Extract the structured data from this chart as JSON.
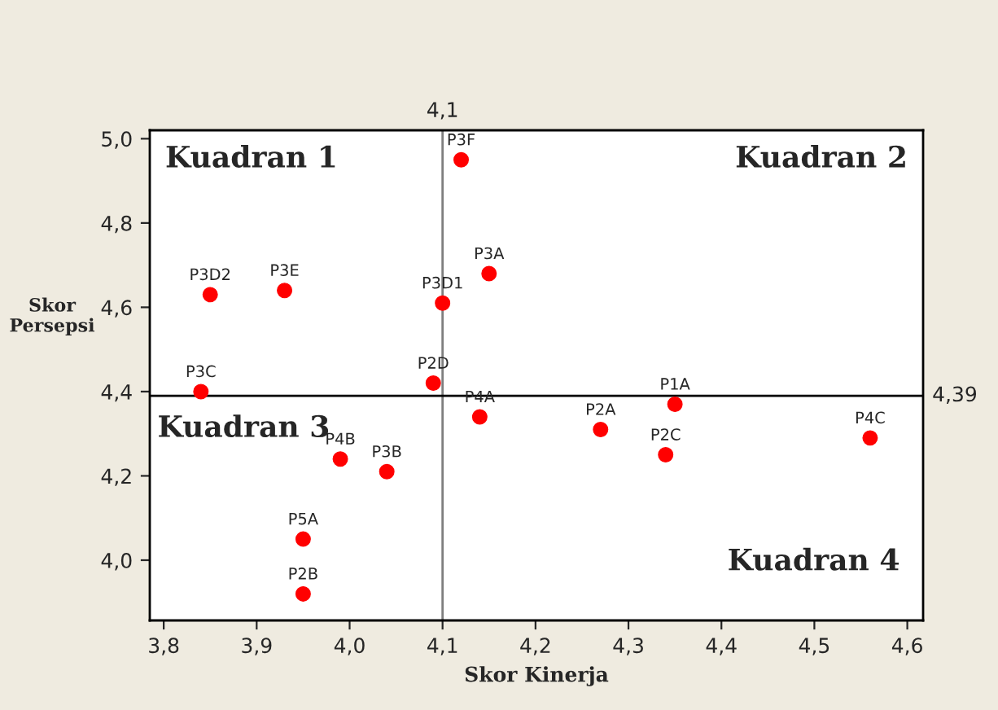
{
  "chart_data": {
    "type": "scatter",
    "xlabel": "Skor Kinerja",
    "ylabel": "Skor Persepsi",
    "x": [
      4.12,
      4.15,
      4.1,
      4.09,
      3.85,
      3.93,
      3.84,
      4.14,
      3.99,
      4.04,
      3.95,
      3.95,
      4.27,
      4.35,
      4.34,
      4.56
    ],
    "series": [
      {
        "color": "#ff0000",
        "values": [
          4.95,
          4.68,
          4.61,
          4.42,
          4.63,
          4.64,
          4.4,
          4.34,
          4.24,
          4.21,
          4.05,
          3.92,
          4.31,
          4.37,
          4.25,
          4.29
        ]
      }
    ],
    "marker": "circle",
    "grid": false,
    "legend": false,
    "xlim": [
      3.785,
      4.617
    ],
    "ylim": [
      3.857,
      5.02
    ],
    "xticks": [
      {
        "value": 3.8,
        "label": "3,8"
      },
      {
        "value": 3.9,
        "label": "3,9"
      },
      {
        "value": 4.0,
        "label": "4,0"
      },
      {
        "value": 4.1,
        "label": "4,1"
      },
      {
        "value": 4.2,
        "label": "4,2"
      },
      {
        "value": 4.3,
        "label": "4,3"
      },
      {
        "value": 4.4,
        "label": "4,4"
      },
      {
        "value": 4.5,
        "label": "4,5"
      },
      {
        "value": 4.6,
        "label": "4,6"
      }
    ],
    "yticks": [
      {
        "value": 4.0,
        "label": "4,0"
      },
      {
        "value": 4.2,
        "label": "4,2"
      },
      {
        "value": 4.4,
        "label": "4,4"
      },
      {
        "value": 4.6,
        "label": "4,6"
      },
      {
        "value": 4.8,
        "label": "4,8"
      },
      {
        "value": 5.0,
        "label": "5,0"
      }
    ],
    "ref_lines": [
      {
        "axis": "x",
        "value": 4.1,
        "label": "4,1",
        "color": "#7f7f7f"
      },
      {
        "axis": "y",
        "value": 4.39,
        "label": "4,39",
        "color": "#000000"
      }
    ],
    "annotations": [
      {
        "text": "P3F",
        "x": 4.12,
        "y": 4.95
      },
      {
        "text": "P3A",
        "x": 4.15,
        "y": 4.68
      },
      {
        "text": "P3D1",
        "x": 4.1,
        "y": 4.61
      },
      {
        "text": "P2D",
        "x": 4.09,
        "y": 4.42
      },
      {
        "text": "P3D2",
        "x": 3.85,
        "y": 4.63
      },
      {
        "text": "P3E",
        "x": 3.93,
        "y": 4.64
      },
      {
        "text": "P3C",
        "x": 3.84,
        "y": 4.4
      },
      {
        "text": "P4A",
        "x": 4.14,
        "y": 4.34
      },
      {
        "text": "P4B",
        "x": 3.99,
        "y": 4.24
      },
      {
        "text": "P3B",
        "x": 4.04,
        "y": 4.21
      },
      {
        "text": "P5A",
        "x": 3.95,
        "y": 4.05
      },
      {
        "text": "P2B",
        "x": 3.95,
        "y": 3.92
      },
      {
        "text": "P2A",
        "x": 4.27,
        "y": 4.31
      },
      {
        "text": "P1A",
        "x": 4.35,
        "y": 4.37
      },
      {
        "text": "P2C",
        "x": 4.34,
        "y": 4.25
      },
      {
        "text": "P4C",
        "x": 4.56,
        "y": 4.29
      },
      "Kuadran 1",
      "Kuadran 2",
      "Kuadran 3",
      "Kuadran 4"
    ]
  }
}
